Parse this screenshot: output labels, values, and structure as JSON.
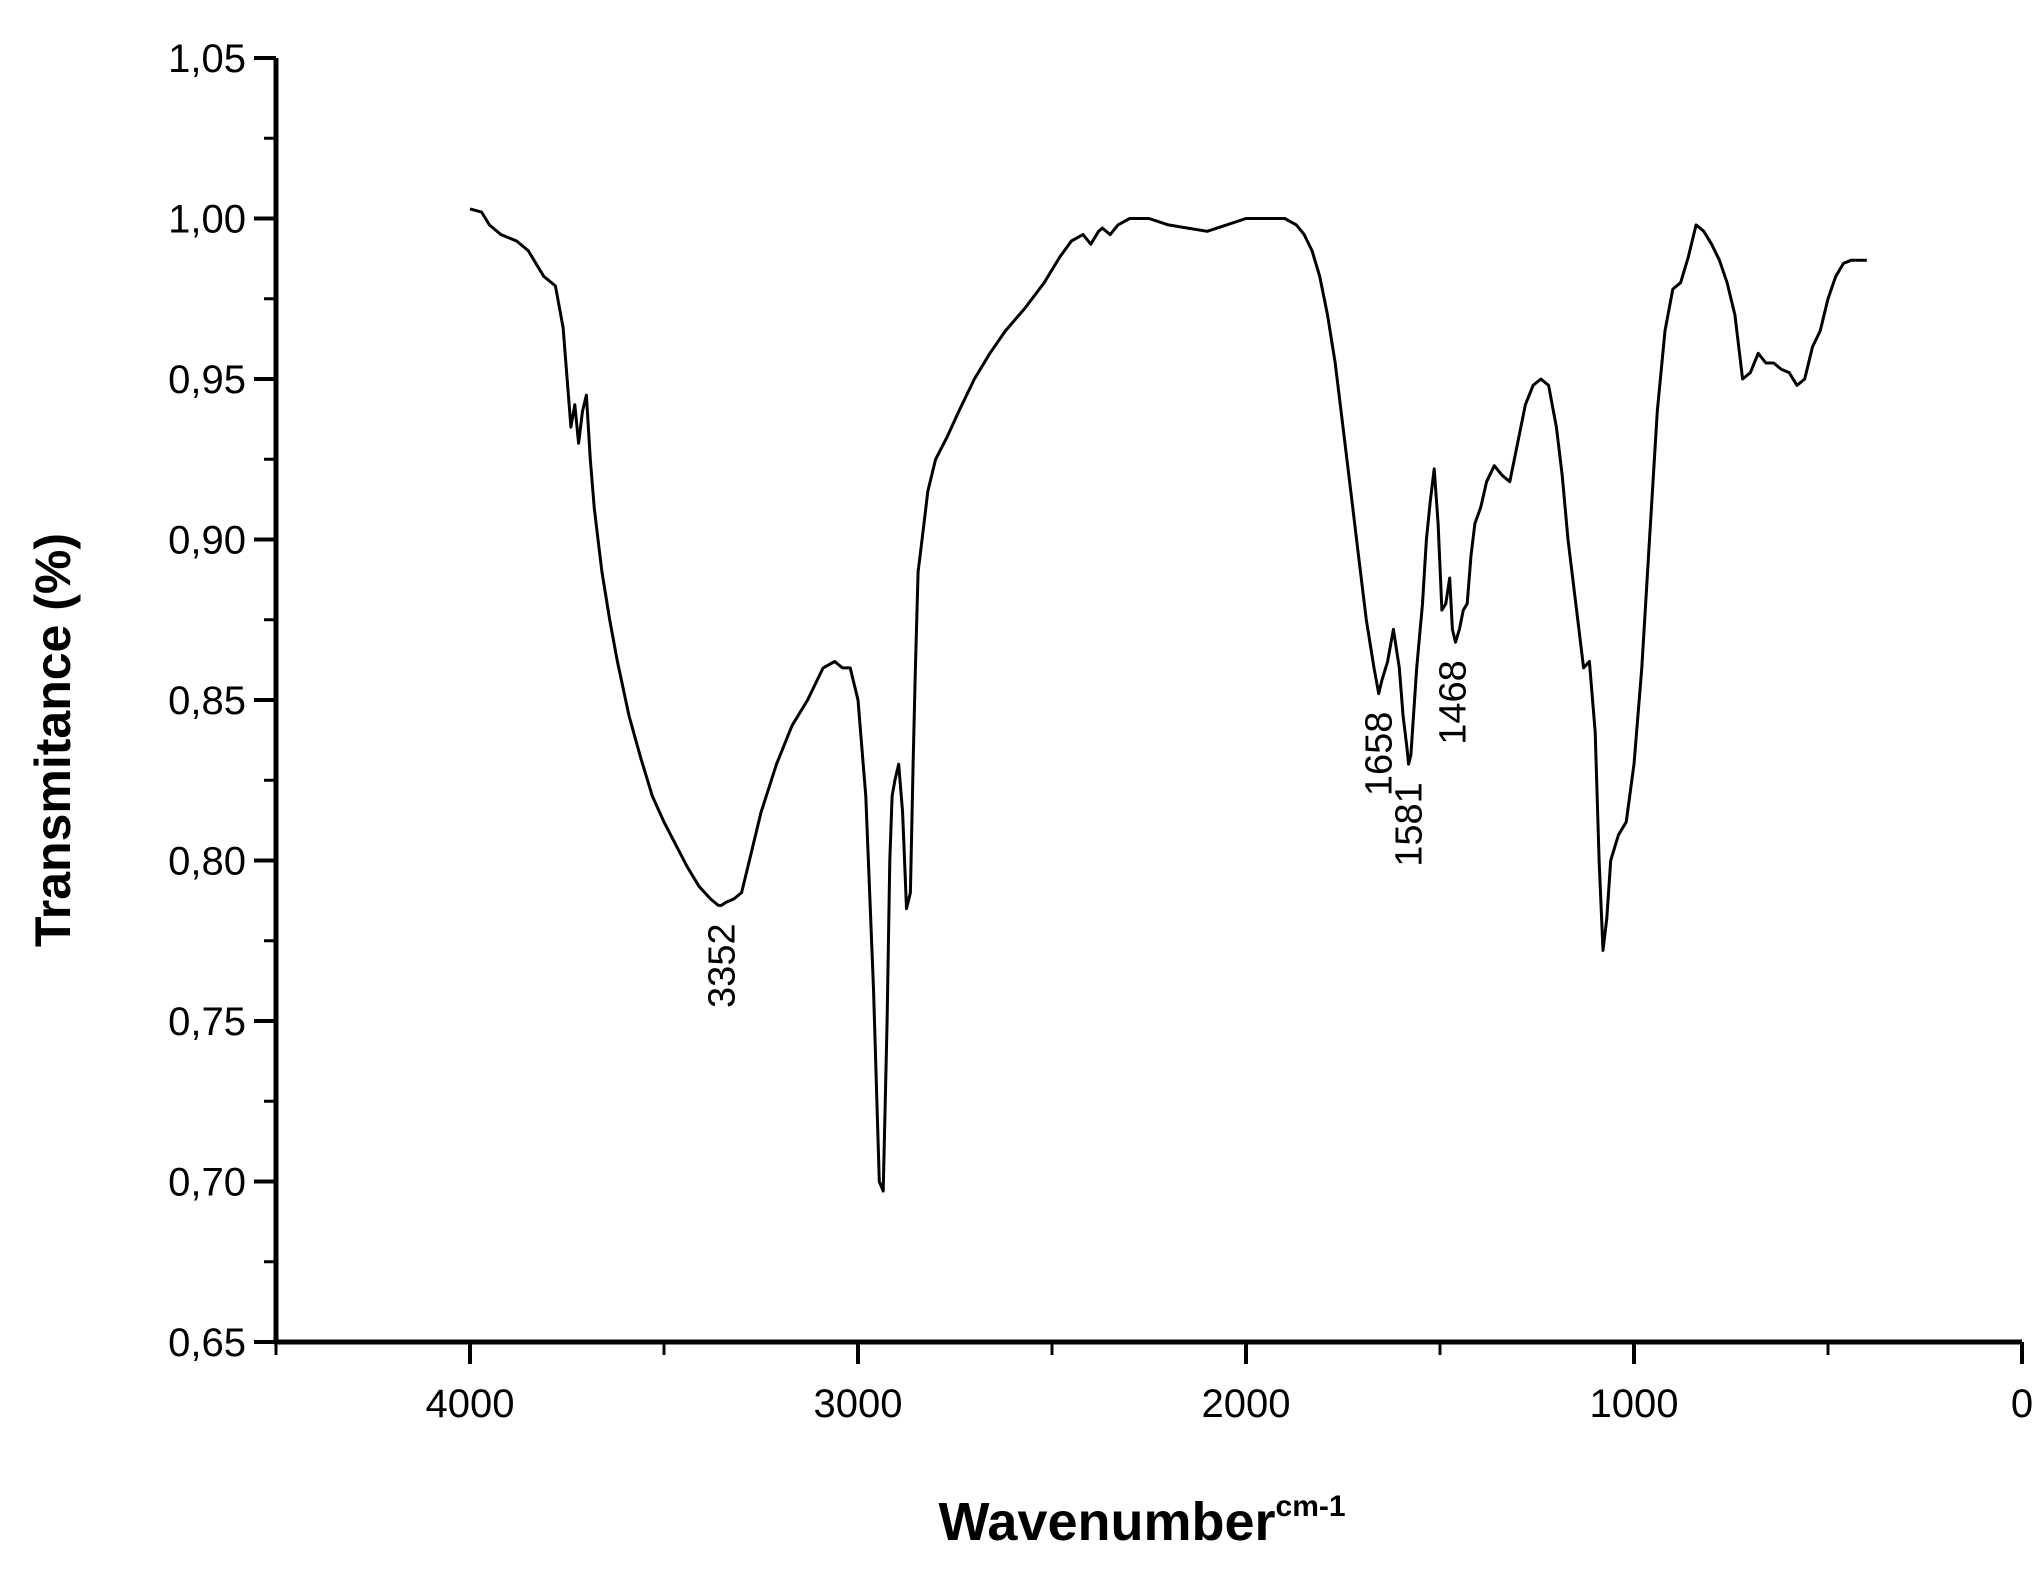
{
  "chart_data": {
    "type": "line",
    "xlabel": "Wavenumber",
    "xlabel_superscript": "cm-1",
    "ylabel": "Transmitance (%)",
    "xlim": [
      4500,
      0
    ],
    "ylim": [
      0.65,
      1.05
    ],
    "x_ticks": [
      "4000",
      "3000",
      "2000",
      "1000",
      "0"
    ],
    "y_ticks": [
      "1,05",
      "1,00",
      "0,95",
      "0,90",
      "0,85",
      "0,80",
      "0,75",
      "0,70",
      "0,65"
    ],
    "grid": false,
    "line_color": "#000000",
    "series": [
      {
        "x": [
          4000,
          3970,
          3950,
          3920,
          3880,
          3850,
          3810,
          3780,
          3760,
          3740,
          3730,
          3720,
          3710,
          3700,
          3690,
          3680,
          3670,
          3660,
          3640,
          3620,
          3590,
          3560,
          3530,
          3500,
          3470,
          3440,
          3410,
          3380,
          3360,
          3352,
          3340,
          3320,
          3300,
          3280,
          3250,
          3210,
          3170,
          3130,
          3090,
          3060,
          3040,
          3020,
          3000,
          2980,
          2960,
          2945,
          2935,
          2925,
          2918,
          2912,
          2905,
          2895,
          2885,
          2875,
          2865,
          2858,
          2852,
          2845,
          2840,
          2830,
          2820,
          2800,
          2770,
          2740,
          2700,
          2660,
          2620,
          2570,
          2520,
          2480,
          2450,
          2420,
          2400,
          2380,
          2370,
          2350,
          2330,
          2300,
          2250,
          2200,
          2150,
          2100,
          2050,
          2000,
          1950,
          1900,
          1870,
          1850,
          1830,
          1810,
          1790,
          1770,
          1750,
          1730,
          1710,
          1690,
          1670,
          1658,
          1650,
          1635,
          1620,
          1605,
          1595,
          1585,
          1581,
          1575,
          1560,
          1545,
          1535,
          1525,
          1515,
          1505,
          1495,
          1485,
          1475,
          1468,
          1460,
          1450,
          1440,
          1430,
          1420,
          1410,
          1395,
          1380,
          1360,
          1340,
          1320,
          1300,
          1280,
          1260,
          1240,
          1220,
          1200,
          1185,
          1170,
          1150,
          1130,
          1115,
          1100,
          1090,
          1080,
          1070,
          1060,
          1040,
          1020,
          1000,
          980,
          960,
          940,
          920,
          900,
          880,
          860,
          840,
          820,
          800,
          780,
          760,
          740,
          720,
          700,
          680,
          660,
          640,
          620,
          600,
          580,
          560,
          540,
          520,
          500,
          480,
          460,
          440,
          420,
          400
        ],
        "y": [
          1.003,
          1.002,
          0.998,
          0.995,
          0.993,
          0.99,
          0.982,
          0.979,
          0.966,
          0.935,
          0.942,
          0.93,
          0.94,
          0.945,
          0.925,
          0.91,
          0.9,
          0.89,
          0.875,
          0.862,
          0.845,
          0.832,
          0.82,
          0.812,
          0.805,
          0.798,
          0.792,
          0.788,
          0.786,
          0.786,
          0.787,
          0.788,
          0.79,
          0.8,
          0.815,
          0.83,
          0.842,
          0.85,
          0.86,
          0.862,
          0.86,
          0.86,
          0.85,
          0.82,
          0.76,
          0.7,
          0.697,
          0.75,
          0.8,
          0.82,
          0.825,
          0.83,
          0.815,
          0.785,
          0.79,
          0.83,
          0.86,
          0.89,
          0.895,
          0.905,
          0.915,
          0.925,
          0.932,
          0.94,
          0.95,
          0.958,
          0.965,
          0.972,
          0.98,
          0.988,
          0.993,
          0.995,
          0.992,
          0.996,
          0.997,
          0.995,
          0.998,
          1.0,
          1.0,
          0.998,
          0.997,
          0.996,
          0.998,
          1.0,
          1.0,
          1.0,
          0.998,
          0.995,
          0.99,
          0.982,
          0.97,
          0.955,
          0.935,
          0.915,
          0.895,
          0.875,
          0.86,
          0.852,
          0.856,
          0.862,
          0.872,
          0.86,
          0.845,
          0.835,
          0.83,
          0.833,
          0.86,
          0.88,
          0.9,
          0.912,
          0.922,
          0.905,
          0.878,
          0.88,
          0.888,
          0.872,
          0.868,
          0.872,
          0.878,
          0.88,
          0.895,
          0.905,
          0.91,
          0.918,
          0.923,
          0.92,
          0.918,
          0.93,
          0.942,
          0.948,
          0.95,
          0.948,
          0.935,
          0.92,
          0.9,
          0.88,
          0.86,
          0.862,
          0.84,
          0.8,
          0.772,
          0.782,
          0.8,
          0.808,
          0.812,
          0.83,
          0.86,
          0.9,
          0.94,
          0.965,
          0.978,
          0.98,
          0.988,
          0.998,
          0.996,
          0.992,
          0.987,
          0.98,
          0.97,
          0.95,
          0.952,
          0.958,
          0.955,
          0.955,
          0.953,
          0.952,
          0.948,
          0.95,
          0.96,
          0.965,
          0.975,
          0.982,
          0.986,
          0.987,
          0.987,
          0.987
        ]
      }
    ],
    "annotations": [
      {
        "text": "3352",
        "x": 3352,
        "y": 0.786
      },
      {
        "text": "1658",
        "x": 1658,
        "y": 0.852
      },
      {
        "text": "1581",
        "x": 1581,
        "y": 0.83
      },
      {
        "text": "1468",
        "x": 1468,
        "y": 0.868
      }
    ]
  }
}
